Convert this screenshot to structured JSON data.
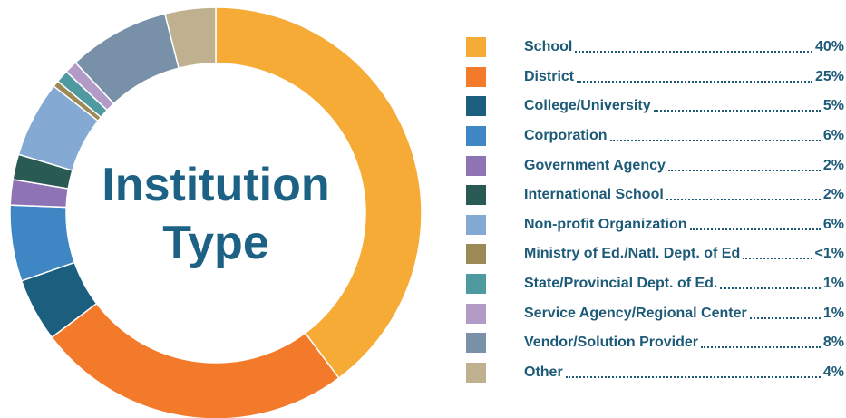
{
  "chart_data": {
    "type": "donut",
    "title": "Institution Type",
    "categories": [
      "School",
      "District",
      "College/University",
      "Corporation",
      "Government Agency",
      "International School",
      "Non-profit Organization",
      "Ministry of Ed./Natl. Dept. of Ed",
      "State/Provincial Dept. of Ed.",
      "Service Agency/Regional Center",
      "Vendor/Solution Provider",
      "Other"
    ],
    "values": [
      40,
      25,
      5,
      6,
      2,
      2,
      6,
      0.5,
      1,
      1,
      8,
      4
    ],
    "value_labels": [
      "40%",
      "25%",
      "5%",
      "6%",
      "2%",
      "2%",
      "6%",
      "<1%",
      "1%",
      "1%",
      "8%",
      "4%"
    ],
    "colors": [
      "#f5ab35",
      "#f37a2b",
      "#1b5e7e",
      "#3f86c4",
      "#8e73b5",
      "#295a54",
      "#84a9d3",
      "#9b8a55",
      "#4f9aa0",
      "#b39bc8",
      "#7890a8",
      "#bfb08f"
    ]
  }
}
